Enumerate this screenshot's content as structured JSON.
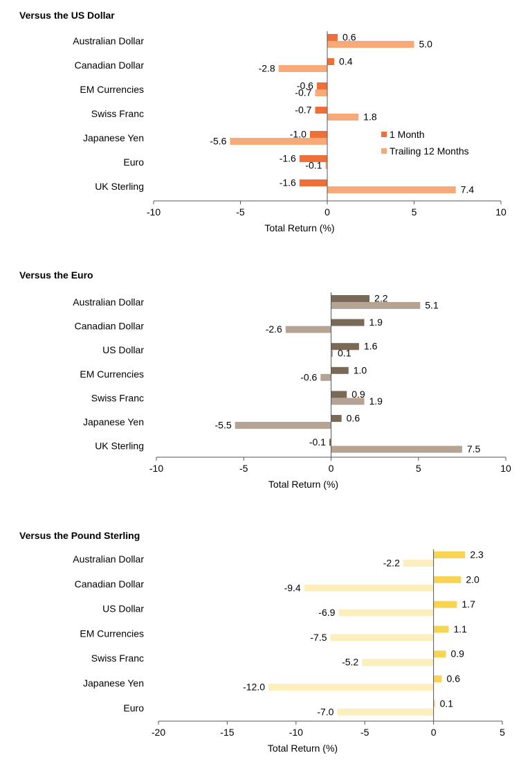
{
  "chart_data": [
    {
      "type": "bar",
      "orientation": "horizontal",
      "title": "Versus the US Dollar",
      "xlabel": "Total Return (%)",
      "xlim": [
        -10,
        10
      ],
      "xticks": [
        -10,
        -5,
        0,
        5,
        10
      ],
      "categories": [
        "Australian Dollar",
        "Canadian Dollar",
        "EM Currencies",
        "Swiss Franc",
        "Japanese Yen",
        "Euro",
        "UK Sterling"
      ],
      "series": [
        {
          "name": "1 Month",
          "color": "#ee7038",
          "values": [
            0.6,
            0.4,
            -0.6,
            -0.7,
            -1.0,
            -1.6,
            -1.6
          ]
        },
        {
          "name": "Trailing 12 Months",
          "color": "#f8a978",
          "values": [
            5.0,
            -2.8,
            -0.7,
            1.8,
            -5.6,
            -0.1,
            7.4
          ]
        }
      ],
      "legend": "right, within plot"
    },
    {
      "type": "bar",
      "orientation": "horizontal",
      "title": "Versus the Euro",
      "xlabel": "Total Return (%)",
      "xlim": [
        -10,
        10
      ],
      "xticks": [
        -10,
        -5,
        0,
        5,
        10
      ],
      "categories": [
        "Australian Dollar",
        "Canadian Dollar",
        "US Dollar",
        "EM Currencies",
        "Swiss Franc",
        "Japanese Yen",
        "UK Sterling"
      ],
      "series": [
        {
          "name": "1 Month",
          "color": "#7b6958",
          "values": [
            2.2,
            1.9,
            1.6,
            1.0,
            0.9,
            0.6,
            -0.1
          ]
        },
        {
          "name": "Trailing 12 Months",
          "color": "#b5a393",
          "values": [
            5.1,
            -2.6,
            0.1,
            -0.6,
            1.9,
            -5.5,
            7.5
          ]
        }
      ]
    },
    {
      "type": "bar",
      "orientation": "horizontal",
      "title": "Versus the Pound Sterling",
      "xlabel": "Total Return (%)",
      "xlim": [
        -20,
        5
      ],
      "xticks": [
        -20,
        -15,
        -10,
        -5,
        0,
        5
      ],
      "categories": [
        "Australian Dollar",
        "Canadian Dollar",
        "US Dollar",
        "EM Currencies",
        "Swiss Franc",
        "Japanese Yen",
        "Euro"
      ],
      "series": [
        {
          "name": "1 Month",
          "color": "#f7d552",
          "values": [
            2.3,
            2.0,
            1.7,
            1.1,
            0.9,
            0.6,
            0.1
          ]
        },
        {
          "name": "Trailing 12 Months",
          "color": "#fcefbd",
          "values": [
            -2.2,
            -9.4,
            -6.9,
            -7.5,
            -5.2,
            -12.0,
            -7.0
          ]
        }
      ]
    }
  ]
}
